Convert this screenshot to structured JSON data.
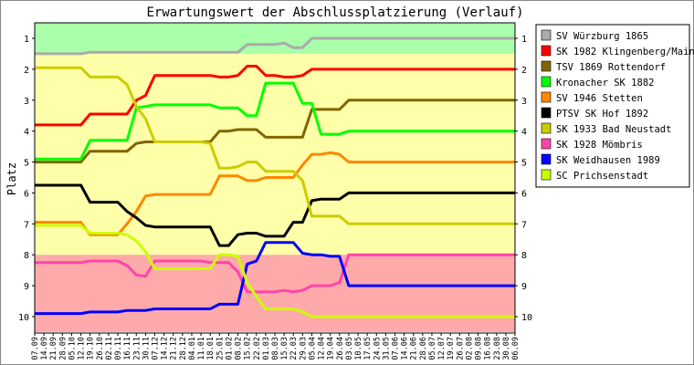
{
  "chart_data": {
    "type": "line",
    "title": "Erwartungswert der Abschlussplatzierung (Verlauf)",
    "ylabel": "Platz",
    "xlabel": "",
    "ylim": [
      1,
      10
    ],
    "y_inverted": true,
    "yticks": [
      "1",
      "2",
      "3",
      "4",
      "5",
      "6",
      "7",
      "8",
      "9",
      "10"
    ],
    "bands": [
      {
        "from": 0.5,
        "to": 1.5,
        "color": "#aaffaa"
      },
      {
        "from": 1.5,
        "to": 8.0,
        "color": "#ffffaa"
      },
      {
        "from": 8.0,
        "to": 10.5,
        "color": "#ffaaaa"
      }
    ],
    "x": [
      "07.09",
      "14.09",
      "21.09",
      "28.09",
      "05.10",
      "12.10",
      "19.10",
      "26.10",
      "02.11",
      "09.11",
      "16.11",
      "23.11",
      "30.11",
      "07.12",
      "14.12",
      "21.12",
      "28.12",
      "04.01",
      "11.01",
      "18.01",
      "25.01",
      "01.02",
      "08.02",
      "15.02",
      "22.02",
      "01.03",
      "08.03",
      "15.03",
      "22.03",
      "29.03",
      "05.04",
      "12.04",
      "19.04",
      "26.04",
      "03.05",
      "10.05",
      "17.05",
      "24.05",
      "31.05",
      "07.06",
      "14.06",
      "21.06",
      "28.06",
      "05.07",
      "12.07",
      "19.07",
      "26.07",
      "02.08",
      "09.08",
      "16.08",
      "23.08",
      "30.08",
      "06.09"
    ],
    "series": [
      {
        "name": "SV Würzburg 1865",
        "color": "#aaaaaa",
        "values": [
          1.5,
          1.5,
          1.5,
          1.5,
          1.5,
          1.5,
          1.45,
          1.45,
          1.45,
          1.45,
          1.45,
          1.45,
          1.45,
          1.45,
          1.45,
          1.45,
          1.45,
          1.45,
          1.45,
          1.45,
          1.45,
          1.45,
          1.45,
          1.2,
          1.2,
          1.2,
          1.2,
          1.15,
          1.3,
          1.3,
          1.0,
          1.0,
          1.0,
          1.0,
          1.0,
          1.0,
          1.0,
          1.0,
          1.0,
          1.0,
          1.0,
          1.0,
          1.0,
          1.0,
          1.0,
          1.0,
          1.0,
          1.0,
          1.0,
          1.0,
          1.0,
          1.0,
          1.0
        ]
      },
      {
        "name": "SK 1982 Klingenberg/Main",
        "color": "#ff0000",
        "values": [
          3.8,
          3.8,
          3.8,
          3.8,
          3.8,
          3.8,
          3.45,
          3.45,
          3.45,
          3.45,
          3.45,
          3.0,
          2.85,
          2.2,
          2.2,
          2.2,
          2.2,
          2.2,
          2.2,
          2.2,
          2.25,
          2.25,
          2.2,
          1.9,
          1.9,
          2.2,
          2.2,
          2.25,
          2.25,
          2.2,
          2.0,
          2.0,
          2.0,
          2.0,
          2.0,
          2.0,
          2.0,
          2.0,
          2.0,
          2.0,
          2.0,
          2.0,
          2.0,
          2.0,
          2.0,
          2.0,
          2.0,
          2.0,
          2.0,
          2.0,
          2.0,
          2.0,
          2.0
        ]
      },
      {
        "name": "TSV 1869 Rottendorf",
        "color": "#806600",
        "values": [
          5.0,
          5.0,
          5.0,
          5.0,
          5.0,
          5.0,
          4.65,
          4.65,
          4.65,
          4.65,
          4.65,
          4.4,
          4.35,
          4.35,
          4.35,
          4.35,
          4.35,
          4.35,
          4.35,
          4.35,
          4.0,
          4.0,
          3.95,
          3.95,
          3.95,
          4.2,
          4.2,
          4.2,
          4.2,
          4.2,
          3.3,
          3.3,
          3.3,
          3.3,
          3.0,
          3.0,
          3.0,
          3.0,
          3.0,
          3.0,
          3.0,
          3.0,
          3.0,
          3.0,
          3.0,
          3.0,
          3.0,
          3.0,
          3.0,
          3.0,
          3.0,
          3.0,
          3.0
        ]
      },
      {
        "name": "Kronacher SK 1882",
        "color": "#00ff00",
        "values": [
          4.9,
          4.9,
          4.9,
          4.9,
          4.9,
          4.9,
          4.3,
          4.3,
          4.3,
          4.3,
          4.3,
          3.25,
          3.2,
          3.15,
          3.15,
          3.15,
          3.15,
          3.15,
          3.15,
          3.15,
          3.25,
          3.25,
          3.25,
          3.5,
          3.5,
          2.45,
          2.45,
          2.45,
          2.45,
          3.1,
          3.1,
          4.1,
          4.1,
          4.1,
          4.0,
          4.0,
          4.0,
          4.0,
          4.0,
          4.0,
          4.0,
          4.0,
          4.0,
          4.0,
          4.0,
          4.0,
          4.0,
          4.0,
          4.0,
          4.0,
          4.0,
          4.0,
          4.0
        ]
      },
      {
        "name": "SV 1946 Stetten",
        "color": "#ff8800",
        "values": [
          6.95,
          6.95,
          6.95,
          6.95,
          6.95,
          6.95,
          7.35,
          7.35,
          7.35,
          7.35,
          7.0,
          6.6,
          6.1,
          6.05,
          6.05,
          6.05,
          6.05,
          6.05,
          6.05,
          6.05,
          5.45,
          5.45,
          5.45,
          5.6,
          5.6,
          5.5,
          5.5,
          5.5,
          5.5,
          5.1,
          4.75,
          4.75,
          4.7,
          4.75,
          5.0,
          5.0,
          5.0,
          5.0,
          5.0,
          5.0,
          5.0,
          5.0,
          5.0,
          5.0,
          5.0,
          5.0,
          5.0,
          5.0,
          5.0,
          5.0,
          5.0,
          5.0,
          5.0
        ]
      },
      {
        "name": "PTSV SK Hof 1892",
        "color": "#000000",
        "values": [
          5.75,
          5.75,
          5.75,
          5.75,
          5.75,
          5.75,
          6.3,
          6.3,
          6.3,
          6.3,
          6.6,
          6.8,
          7.05,
          7.1,
          7.1,
          7.1,
          7.1,
          7.1,
          7.1,
          7.1,
          7.7,
          7.7,
          7.35,
          7.3,
          7.3,
          7.4,
          7.4,
          7.4,
          6.95,
          6.95,
          6.25,
          6.2,
          6.2,
          6.2,
          6.0,
          6.0,
          6.0,
          6.0,
          6.0,
          6.0,
          6.0,
          6.0,
          6.0,
          6.0,
          6.0,
          6.0,
          6.0,
          6.0,
          6.0,
          6.0,
          6.0,
          6.0,
          6.0
        ]
      },
      {
        "name": "SK 1933 Bad Neustadt",
        "color": "#cccc00",
        "values": [
          1.95,
          1.95,
          1.95,
          1.95,
          1.95,
          1.95,
          2.25,
          2.25,
          2.25,
          2.25,
          2.5,
          3.2,
          3.6,
          4.35,
          4.35,
          4.35,
          4.35,
          4.35,
          4.35,
          4.4,
          5.2,
          5.2,
          5.15,
          5.0,
          5.0,
          5.3,
          5.3,
          5.3,
          5.3,
          5.6,
          6.75,
          6.75,
          6.75,
          6.75,
          7.0,
          7.0,
          7.0,
          7.0,
          7.0,
          7.0,
          7.0,
          7.0,
          7.0,
          7.0,
          7.0,
          7.0,
          7.0,
          7.0,
          7.0,
          7.0,
          7.0,
          7.0,
          7.0
        ]
      },
      {
        "name": "SK 1928 Mömbris",
        "color": "#ff44aa",
        "values": [
          8.25,
          8.25,
          8.25,
          8.25,
          8.25,
          8.25,
          8.2,
          8.2,
          8.2,
          8.2,
          8.35,
          8.65,
          8.7,
          8.2,
          8.2,
          8.2,
          8.2,
          8.2,
          8.2,
          8.25,
          8.25,
          8.25,
          8.55,
          9.2,
          9.2,
          9.2,
          9.2,
          9.15,
          9.2,
          9.15,
          9.0,
          9.0,
          9.0,
          8.9,
          8.0,
          8.0,
          8.0,
          8.0,
          8.0,
          8.0,
          8.0,
          8.0,
          8.0,
          8.0,
          8.0,
          8.0,
          8.0,
          8.0,
          8.0,
          8.0,
          8.0,
          8.0,
          8.0
        ]
      },
      {
        "name": "SK Weidhausen 1989",
        "color": "#0000ff",
        "values": [
          9.9,
          9.9,
          9.9,
          9.9,
          9.9,
          9.9,
          9.85,
          9.85,
          9.85,
          9.85,
          9.8,
          9.8,
          9.8,
          9.75,
          9.75,
          9.75,
          9.75,
          9.75,
          9.75,
          9.75,
          9.6,
          9.6,
          9.6,
          8.3,
          8.2,
          7.6,
          7.6,
          7.6,
          7.6,
          7.95,
          8.0,
          8.0,
          8.05,
          8.05,
          9.0,
          9.0,
          9.0,
          9.0,
          9.0,
          9.0,
          9.0,
          9.0,
          9.0,
          9.0,
          9.0,
          9.0,
          9.0,
          9.0,
          9.0,
          9.0,
          9.0,
          9.0,
          9.0
        ]
      },
      {
        "name": "SC Prichsenstadt",
        "color": "#ccff00",
        "values": [
          7.05,
          7.05,
          7.05,
          7.05,
          7.05,
          7.05,
          7.3,
          7.3,
          7.3,
          7.3,
          7.35,
          7.55,
          7.9,
          8.45,
          8.45,
          8.45,
          8.45,
          8.45,
          8.45,
          8.45,
          8.0,
          8.0,
          8.05,
          8.9,
          9.35,
          9.75,
          9.75,
          9.75,
          9.75,
          9.85,
          10.0,
          10.0,
          10.0,
          10.0,
          10.0,
          10.0,
          10.0,
          10.0,
          10.0,
          10.0,
          10.0,
          10.0,
          10.0,
          10.0,
          10.0,
          10.0,
          10.0,
          10.0,
          10.0,
          10.0,
          10.0,
          10.0,
          10.0
        ]
      }
    ],
    "legend_position": "right",
    "grid": false
  }
}
